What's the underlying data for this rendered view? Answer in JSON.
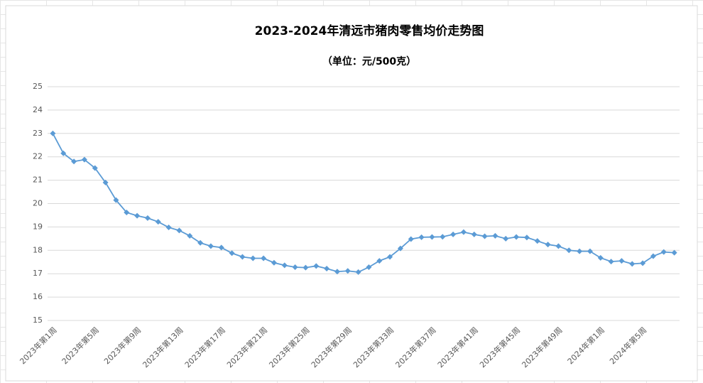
{
  "chart_data": {
    "type": "line",
    "title": "2023-2024年清远市猪肉零售均价走势图",
    "subtitle": "（单位：元/500克）",
    "categories": [
      "2023年第1周",
      null,
      null,
      null,
      "2023年第5周",
      null,
      null,
      null,
      "2023年第9周",
      null,
      null,
      null,
      "2023年第13周",
      null,
      null,
      null,
      "2023年第17周",
      null,
      null,
      null,
      "2023年第21周",
      null,
      null,
      null,
      "2023年第25周",
      null,
      null,
      null,
      "2023年第29周",
      null,
      null,
      null,
      "2023年第33周",
      null,
      null,
      null,
      "2023年第37周",
      null,
      null,
      null,
      "2023年第41周",
      null,
      null,
      null,
      "2023年第45周",
      null,
      null,
      null,
      "2023年第49周",
      null,
      null,
      null,
      "2024年第1周",
      null,
      null,
      null,
      "2024年第5周",
      null,
      null,
      null
    ],
    "values": [
      23.0,
      22.15,
      21.8,
      21.88,
      21.52,
      20.9,
      20.15,
      19.62,
      19.48,
      19.38,
      19.22,
      18.98,
      18.85,
      18.62,
      18.32,
      18.18,
      18.12,
      17.88,
      17.72,
      17.66,
      17.66,
      17.47,
      17.36,
      17.28,
      17.26,
      17.33,
      17.22,
      17.09,
      17.12,
      17.07,
      17.28,
      17.55,
      17.72,
      18.08,
      18.48,
      18.56,
      18.57,
      18.58,
      18.68,
      18.78,
      18.68,
      18.6,
      18.62,
      18.5,
      18.57,
      18.55,
      18.4,
      18.25,
      18.18,
      18.0,
      17.96,
      17.96,
      17.68,
      17.52,
      17.55,
      17.42,
      17.45,
      17.75,
      17.93,
      17.9
    ],
    "color": "#5b9bd5",
    "ylim": [
      15,
      25
    ],
    "yticks": [
      15,
      16,
      17,
      18,
      19,
      20,
      21,
      22,
      23,
      24,
      25
    ],
    "grid": true
  }
}
